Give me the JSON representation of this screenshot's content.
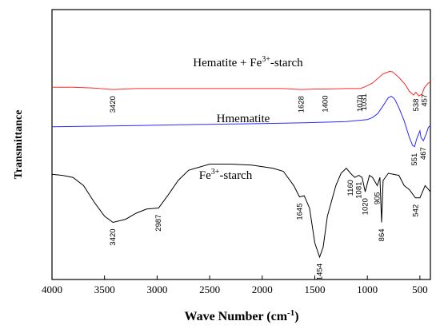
{
  "chart_data": {
    "type": "line",
    "xlabel": "Wave Number (cm",
    "xlabel_sup": "-1",
    "xlabel_tail": ")",
    "ylabel": "Transmittance",
    "xlim": [
      4000,
      400
    ],
    "x_ticks": [
      4000,
      3500,
      3000,
      2500,
      2000,
      1500,
      1000,
      500
    ],
    "grid": false,
    "series": [
      {
        "name": "Hematite + Fe3+-starch",
        "label_main": "Hematite + Fe",
        "label_sup": "3+",
        "label_tail": "-starch",
        "color": "#ff2a2a",
        "points": [
          [
            4000,
            79
          ],
          [
            3800,
            79
          ],
          [
            3600,
            77
          ],
          [
            3420,
            74
          ],
          [
            3200,
            76
          ],
          [
            2800,
            76
          ],
          [
            2400,
            76
          ],
          [
            2000,
            76
          ],
          [
            1800,
            76
          ],
          [
            1628,
            74
          ],
          [
            1500,
            75
          ],
          [
            1400,
            75
          ],
          [
            1200,
            76
          ],
          [
            1070,
            76
          ],
          [
            1031,
            79
          ],
          [
            950,
            88
          ],
          [
            850,
            108
          ],
          [
            790,
            113
          ],
          [
            760,
            112
          ],
          [
            700,
            100
          ],
          [
            640,
            85
          ],
          [
            600,
            70
          ],
          [
            560,
            62
          ],
          [
            538,
            68
          ],
          [
            510,
            60
          ],
          [
            480,
            64
          ],
          [
            457,
            78
          ],
          [
            420,
            88
          ],
          [
            400,
            90
          ]
        ],
        "annotations": [
          [
            "3420",
            3420
          ],
          [
            "1628",
            1628
          ],
          [
            "1400",
            1400
          ],
          [
            "1070",
            1070
          ],
          [
            "1031",
            1031
          ],
          [
            "538",
            538
          ],
          [
            "457",
            457
          ]
        ]
      },
      {
        "name": "Hmematite",
        "label_main": "Hmematite",
        "label_sup": "",
        "label_tail": "",
        "color": "#2a2aff",
        "points": [
          [
            4000,
            46
          ],
          [
            3600,
            47
          ],
          [
            3200,
            48
          ],
          [
            2800,
            49
          ],
          [
            2400,
            50
          ],
          [
            2000,
            51
          ],
          [
            1600,
            52
          ],
          [
            1200,
            54
          ],
          [
            1000,
            57
          ],
          [
            950,
            60
          ],
          [
            900,
            66
          ],
          [
            850,
            78
          ],
          [
            800,
            90
          ],
          [
            770,
            92
          ],
          [
            740,
            88
          ],
          [
            700,
            75
          ],
          [
            650,
            55
          ],
          [
            600,
            30
          ],
          [
            570,
            18
          ],
          [
            551,
            16
          ],
          [
            530,
            28
          ],
          [
            500,
            40
          ],
          [
            490,
            30
          ],
          [
            467,
            25
          ],
          [
            440,
            35
          ],
          [
            420,
            45
          ],
          [
            400,
            48
          ]
        ],
        "annotations": [
          [
            "551",
            551
          ],
          [
            "467",
            467
          ]
        ]
      },
      {
        "name": "Fe3+-starch",
        "label_main": "Fe",
        "label_sup": "3+",
        "label_tail": "-starch",
        "color": "#000000",
        "points": [
          [
            4000,
            -19
          ],
          [
            3900,
            -20
          ],
          [
            3800,
            -22
          ],
          [
            3700,
            -30
          ],
          [
            3600,
            -46
          ],
          [
            3500,
            -60
          ],
          [
            3420,
            -66
          ],
          [
            3300,
            -63
          ],
          [
            3200,
            -57
          ],
          [
            3100,
            -53
          ],
          [
            3000,
            -52
          ],
          [
            2987,
            -52
          ],
          [
            2900,
            -40
          ],
          [
            2800,
            -25
          ],
          [
            2700,
            -15
          ],
          [
            2600,
            -12
          ],
          [
            2500,
            -9
          ],
          [
            2300,
            -9
          ],
          [
            2100,
            -10
          ],
          [
            1900,
            -13
          ],
          [
            1800,
            -16
          ],
          [
            1700,
            -30
          ],
          [
            1645,
            -41
          ],
          [
            1600,
            -40
          ],
          [
            1550,
            -52
          ],
          [
            1500,
            -86
          ],
          [
            1454,
            -100
          ],
          [
            1420,
            -90
          ],
          [
            1380,
            -60
          ],
          [
            1300,
            -30
          ],
          [
            1250,
            -18
          ],
          [
            1200,
            -13
          ],
          [
            1160,
            -18
          ],
          [
            1120,
            -22
          ],
          [
            1081,
            -20
          ],
          [
            1050,
            -22
          ],
          [
            1020,
            -36
          ],
          [
            980,
            -20
          ],
          [
            950,
            -22
          ],
          [
            905,
            -30
          ],
          [
            880,
            -22
          ],
          [
            864,
            -66
          ],
          [
            850,
            -25
          ],
          [
            800,
            -18
          ],
          [
            700,
            -20
          ],
          [
            650,
            -30
          ],
          [
            600,
            -34
          ],
          [
            542,
            -42
          ],
          [
            500,
            -42
          ],
          [
            450,
            -30
          ],
          [
            400,
            -36
          ]
        ],
        "annotations": [
          [
            "3420",
            3420
          ],
          [
            "2987",
            2987
          ],
          [
            "1645",
            1645
          ],
          [
            "1454",
            1454
          ],
          [
            "1160",
            1160
          ],
          [
            "1081",
            1081
          ],
          [
            "1020",
            1020
          ],
          [
            "905",
            905
          ],
          [
            "864",
            864
          ],
          [
            "542",
            542
          ]
        ]
      }
    ]
  }
}
